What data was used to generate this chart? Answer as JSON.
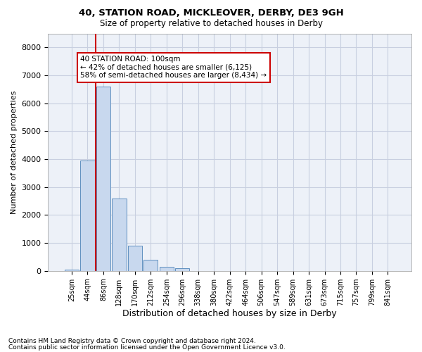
{
  "title1": "40, STATION ROAD, MICKLEOVER, DERBY, DE3 9GH",
  "title2": "Size of property relative to detached houses in Derby",
  "xlabel": "Distribution of detached houses by size in Derby",
  "ylabel": "Number of detached properties",
  "categories": [
    "25sqm",
    "44sqm",
    "86sqm",
    "128sqm",
    "170sqm",
    "212sqm",
    "254sqm",
    "296sqm",
    "338sqm",
    "380sqm",
    "422sqm",
    "464sqm",
    "506sqm",
    "547sqm",
    "589sqm",
    "631sqm",
    "673sqm",
    "715sqm",
    "757sqm",
    "799sqm",
    "841sqm"
  ],
  "values": [
    50,
    3950,
    6600,
    2600,
    900,
    400,
    150,
    100,
    0,
    0,
    0,
    0,
    0,
    0,
    0,
    0,
    0,
    0,
    0,
    0,
    0
  ],
  "bar_color": "#c8d8ee",
  "bar_edgecolor": "#6090c0",
  "redline_index": 1.5,
  "annotation_text": "40 STATION ROAD: 100sqm\n← 42% of detached houses are smaller (6,125)\n58% of semi-detached houses are larger (8,434) →",
  "annotation_box_color": "#ffffff",
  "annotation_box_edgecolor": "#cc0000",
  "redline_color": "#cc0000",
  "footer1": "Contains HM Land Registry data © Crown copyright and database right 2024.",
  "footer2": "Contains public sector information licensed under the Open Government Licence v3.0.",
  "ylim": [
    0,
    8500
  ],
  "yticks": [
    0,
    1000,
    2000,
    3000,
    4000,
    5000,
    6000,
    7000,
    8000
  ],
  "grid_color": "#c8cfe0",
  "bg_color": "#edf1f8"
}
